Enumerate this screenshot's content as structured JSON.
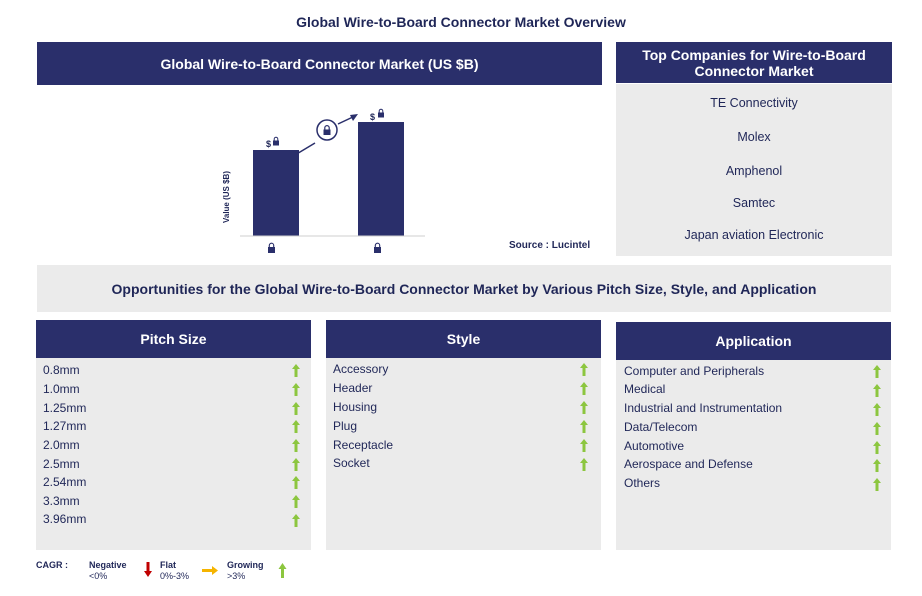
{
  "title": "Global Wire-to-Board Connector Market Overview",
  "market_chart": {
    "header": "Global Wire-to-Board Connector Market (US $B)",
    "ylabel": "Value (US $B)",
    "source": "Source : Lucintel",
    "bar_value_label": "$"
  },
  "chart_data": {
    "type": "bar",
    "ylabel": "Value (US $B)",
    "bars": 2,
    "note": ""
  },
  "companies": {
    "header": "Top Companies for Wire-to-Board Connector Market",
    "items": [
      "TE Connectivity",
      "Molex",
      "Amphenol",
      "Samtec",
      "Japan aviation Electronic"
    ]
  },
  "opportunities_title": "Opportunities for the Global Wire-to-Board Connector Market by Various Pitch Size, Style, and Application",
  "pitch_size": {
    "header": "Pitch Size",
    "items": [
      "0.8mm",
      "1.0mm",
      "1.25mm",
      "1.27mm",
      "2.0mm",
      "2.5mm",
      "2.54mm",
      "3.3mm",
      "3.96mm"
    ]
  },
  "style": {
    "header": "Style",
    "items": [
      "Accessory",
      "Header",
      "Housing",
      "Plug",
      "Receptacle",
      "Socket"
    ]
  },
  "application": {
    "header": "Application",
    "items": [
      "Computer and Peripherals",
      "Medical",
      "Industrial and Instrumentation",
      "Data/Telecom",
      "Automotive",
      "Aerospace and Defense",
      "Others"
    ]
  },
  "legend": {
    "cagr": "CAGR :",
    "negative": "Negative",
    "negative_range": "<0%",
    "flat": "Flat",
    "flat_range": "0%-3%",
    "growing": "Growing",
    "growing_range": ">3%"
  },
  "colors": {
    "navy": "#2a2f6b",
    "grey": "#ebebeb",
    "up_arrow": "#8cc63f",
    "down_arrow": "#c00000",
    "flat_arrow": "#f5b400"
  }
}
